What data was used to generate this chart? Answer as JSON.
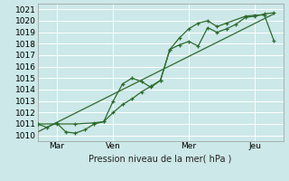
{
  "xlabel": "Pression niveau de la mer( hPa )",
  "bg_color": "#cce8e8",
  "grid_color": "#ffffff",
  "line_color": "#2d6a2d",
  "xlim": [
    0,
    13.0
  ],
  "ylim": [
    1009.5,
    1021.5
  ],
  "yticks": [
    1010,
    1011,
    1012,
    1013,
    1014,
    1015,
    1016,
    1017,
    1018,
    1019,
    1020,
    1021
  ],
  "xtick_positions": [
    1.0,
    4.0,
    8.0,
    11.5
  ],
  "xtick_labels": [
    "Mar",
    "Ven",
    "Mer",
    "Jeu"
  ],
  "vlines": [
    1.0,
    4.0,
    8.0,
    11.5
  ],
  "series1_x": [
    0.0,
    0.5,
    1.0,
    1.5,
    2.0,
    2.5,
    3.0,
    3.5,
    4.0,
    4.5,
    5.0,
    5.5,
    6.0,
    6.5,
    7.0,
    7.5,
    8.0,
    8.5,
    9.0,
    9.5,
    10.0,
    10.5,
    11.0,
    11.5,
    12.0,
    12.5
  ],
  "series1_y": [
    1011.0,
    1010.7,
    1011.1,
    1010.3,
    1010.2,
    1010.5,
    1011.0,
    1011.2,
    1012.0,
    1012.7,
    1013.2,
    1013.8,
    1014.3,
    1014.8,
    1017.5,
    1017.9,
    1018.2,
    1017.8,
    1019.4,
    1019.0,
    1019.3,
    1019.7,
    1020.3,
    1020.4,
    1020.6,
    1020.7
  ],
  "series2_x": [
    0.0,
    1.0,
    2.0,
    3.0,
    3.5,
    4.0,
    4.5,
    5.0,
    5.5,
    6.0,
    6.5,
    7.0,
    7.5,
    8.0,
    8.5,
    9.0,
    9.5,
    10.0,
    11.0,
    11.5,
    12.0,
    12.5
  ],
  "series2_y": [
    1011.0,
    1011.0,
    1011.0,
    1011.1,
    1011.2,
    1013.0,
    1014.5,
    1015.0,
    1014.7,
    1014.2,
    1014.8,
    1017.5,
    1018.5,
    1019.3,
    1019.8,
    1020.0,
    1019.5,
    1019.8,
    1020.4,
    1020.5,
    1020.5,
    1018.3
  ],
  "series3_x": [
    0.0,
    12.5
  ],
  "series3_y": [
    1010.3,
    1020.6
  ]
}
